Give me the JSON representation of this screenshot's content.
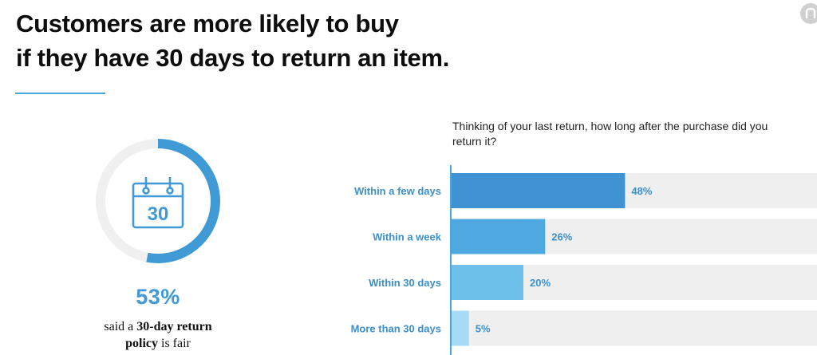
{
  "headline": {
    "line1": "Customers are more likely to buy",
    "line2": "if they have 30 days to return an item."
  },
  "stat": {
    "value": "53%",
    "percent": 53,
    "icon_number": "30",
    "caption_prefix": "said a ",
    "caption_bold1": "30-day return",
    "caption_bold2": "policy",
    "caption_suffix": " is fair",
    "icon": "calendar-icon",
    "ring_color": "#3f9ad6",
    "track_color": "#f0f0f0"
  },
  "chart_data": {
    "type": "bar",
    "orientation": "horizontal",
    "title": "Thinking of your last return, how long after the purchase did you return it?",
    "categories": [
      "Within a few days",
      "Within a week",
      "Within 30 days",
      "More than 30 days"
    ],
    "values": [
      48,
      26,
      20,
      5
    ],
    "value_labels": [
      "48%",
      "26%",
      "20%",
      "5%"
    ],
    "xlim": [
      0,
      100
    ],
    "colors": [
      "#3f93d2",
      "#4ea9e0",
      "#6cc0ea",
      "#a7dbf4"
    ],
    "track_color": "#efefef",
    "label_color": "#3a8fd0",
    "axis_color": "#4aa7de"
  }
}
